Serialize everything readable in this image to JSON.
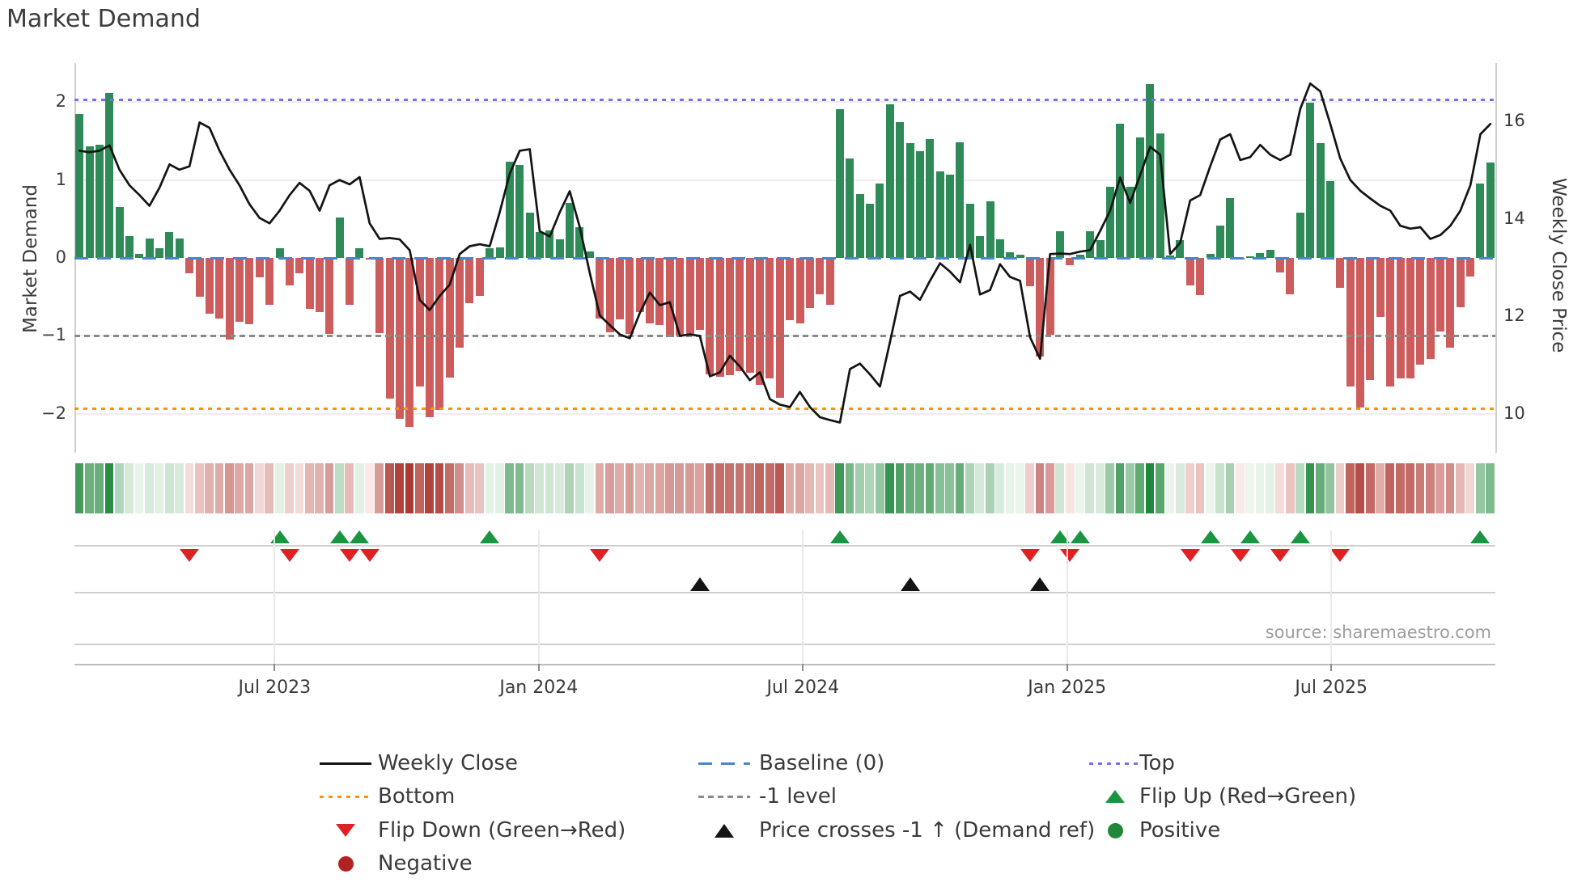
{
  "title": "Market Demand",
  "axes": {
    "left": {
      "label": "Market Demand",
      "ticks": [
        2,
        1,
        0,
        -1,
        -2
      ],
      "range": [
        -2.5,
        2.5
      ]
    },
    "right": {
      "label": "Weekly Close Price",
      "ticks": [
        16,
        14,
        12,
        10
      ],
      "range": [
        9.2,
        17.2
      ]
    },
    "x": {
      "ticks": [
        {
          "label": "Jul 2023",
          "idx": 19.5
        },
        {
          "label": "Jan 2024",
          "idx": 45.9
        },
        {
          "label": "Jul 2024",
          "idx": 72.3
        },
        {
          "label": "Jan 2025",
          "idx": 98.7
        },
        {
          "label": "Jul 2025",
          "idx": 125.1
        }
      ]
    }
  },
  "ref_lines": {
    "top": {
      "label": "Top",
      "value": 2.03,
      "color": "#7b6fe6",
      "style": "dotted"
    },
    "baseline": {
      "label": "Baseline (0)",
      "value": 0,
      "color": "#4a86c4",
      "style": "dashed"
    },
    "minus_one": {
      "label": "-1 level",
      "value": -1,
      "color": "#8a8a8a",
      "style": "dashed"
    },
    "bottom": {
      "label": "Bottom",
      "value": -1.93,
      "color": "#f5960f",
      "style": "dotted"
    }
  },
  "source": "source: sharemaestro.com",
  "legend": {
    "items": [
      {
        "label": "Weekly Close",
        "swatch": "line-black"
      },
      {
        "label": "Bottom",
        "swatch": "dotted-orange"
      },
      {
        "label": "Flip Down (Green→Red)",
        "swatch": "triangle-down-red"
      },
      {
        "label": "Negative",
        "swatch": "circle-darkred"
      },
      {
        "label": "Baseline (0)",
        "swatch": "dashed-blue"
      },
      {
        "label": "-1 level",
        "swatch": "dashed-gray"
      },
      {
        "label": "Price crosses -1 ↑ (Demand ref)",
        "swatch": "triangle-up-black"
      },
      {
        "label": "Top",
        "swatch": "dotted-purple"
      },
      {
        "label": "Flip Up (Red→Green)",
        "swatch": "triangle-up-green"
      },
      {
        "label": "Positive",
        "swatch": "circle-green"
      }
    ]
  },
  "colors": {
    "bar_positive": "#2e8b57",
    "bar_negative": "#cd5c5c",
    "price_line": "#141414",
    "flip_up_marker": "#1a9641",
    "flip_down_marker": "#e02124",
    "price_cross_marker": "#141414",
    "top_line": "#7b6fe6",
    "baseline": "#4a86c4",
    "minus_one_line": "#8a8a8a",
    "bottom_line": "#f5960f"
  },
  "chart_data": {
    "type": [
      "bar",
      "line",
      "heatmap"
    ],
    "n_weeks": 142,
    "title": "Market Demand",
    "ylabel_left": "Market Demand",
    "ylabel_right": "Weekly Close Price",
    "x_tick_labels": [
      "Jul 2023",
      "Jan 2024",
      "Jul 2024",
      "Jan 2025",
      "Jul 2025"
    ],
    "demand": [
      1.85,
      1.43,
      1.45,
      2.12,
      0.65,
      0.28,
      0.05,
      0.25,
      0.12,
      0.33,
      0.25,
      -0.2,
      -0.5,
      -0.72,
      -0.78,
      -1.05,
      -0.82,
      -0.85,
      -0.25,
      -0.6,
      0.12,
      -0.35,
      -0.2,
      -0.65,
      -0.7,
      -0.97,
      0.52,
      -0.6,
      0.12,
      -0.02,
      -0.96,
      -1.8,
      -2.06,
      -2.17,
      -1.65,
      -2.04,
      -1.95,
      -1.54,
      -1.15,
      -0.58,
      -0.49,
      0.12,
      0.13,
      1.23,
      1.19,
      0.58,
      0.33,
      0.35,
      0.24,
      0.71,
      0.39,
      0.08,
      -0.78,
      -0.95,
      -0.79,
      -0.97,
      -0.69,
      -0.84,
      -0.86,
      -1.02,
      -1.0,
      -1.0,
      -0.92,
      -1.49,
      -1.52,
      -1.5,
      -1.45,
      -1.47,
      -1.63,
      -1.55,
      -1.79,
      -0.8,
      -0.84,
      -0.64,
      -0.47,
      -0.6,
      1.91,
      1.28,
      0.82,
      0.7,
      0.95,
      1.97,
      1.74,
      1.47,
      1.37,
      1.52,
      1.11,
      1.07,
      1.48,
      0.7,
      0.28,
      0.73,
      0.24,
      0.07,
      0.04,
      -0.36,
      -1.27,
      -0.99,
      0.34,
      -0.09,
      0.04,
      0.34,
      0.23,
      0.91,
      1.72,
      0.91,
      1.55,
      2.23,
      1.6,
      0.03,
      0.23,
      -0.35,
      -0.48,
      0.05,
      0.42,
      0.77,
      -0.02,
      0.02,
      0.06,
      0.1,
      -0.19,
      -0.47,
      0.58,
      1.99,
      1.47,
      0.99,
      -0.38,
      -1.65,
      -1.92,
      -1.57,
      -0.76,
      -1.65,
      -1.55,
      -1.55,
      -1.37,
      -1.3,
      -0.94,
      -1.15,
      -0.63,
      -0.24,
      0.95,
      1.22
    ],
    "weekly_close": [
      15.4,
      15.37,
      15.4,
      15.51,
      15.01,
      14.69,
      14.49,
      14.27,
      14.64,
      15.12,
      15.01,
      15.08,
      15.98,
      15.87,
      15.4,
      15.01,
      14.69,
      14.3,
      14.02,
      13.91,
      14.17,
      14.49,
      14.74,
      14.58,
      14.17,
      14.69,
      14.8,
      14.71,
      14.86,
      13.91,
      13.59,
      13.61,
      13.58,
      13.36,
      12.34,
      12.13,
      12.42,
      12.65,
      13.28,
      13.44,
      13.48,
      13.44,
      14.14,
      14.93,
      15.4,
      15.43,
      13.75,
      13.64,
      14.14,
      14.57,
      13.83,
      12.89,
      12.02,
      11.82,
      11.63,
      11.55,
      12.07,
      12.49,
      12.23,
      12.29,
      11.6,
      11.63,
      11.6,
      10.77,
      10.85,
      11.19,
      10.97,
      10.69,
      10.85,
      10.3,
      10.19,
      10.14,
      10.45,
      10.14,
      9.93,
      9.87,
      9.82,
      10.92,
      11.03,
      10.81,
      10.56,
      11.47,
      12.42,
      12.51,
      12.34,
      12.73,
      13.09,
      12.92,
      12.7,
      13.47,
      12.45,
      12.54,
      13.07,
      12.81,
      12.73,
      11.57,
      11.13,
      13.28,
      13.29,
      13.28,
      13.33,
      13.36,
      13.75,
      14.17,
      14.85,
      14.33,
      14.9,
      15.48,
      15.32,
      13.28,
      13.51,
      14.38,
      14.49,
      15.08,
      15.63,
      15.74,
      15.21,
      15.27,
      15.52,
      15.32,
      15.21,
      15.32,
      16.26,
      16.78,
      16.62,
      15.95,
      15.24,
      14.8,
      14.58,
      14.42,
      14.27,
      14.17,
      13.86,
      13.8,
      13.83,
      13.59,
      13.67,
      13.86,
      14.17,
      14.69,
      15.74,
      15.95
    ],
    "flip_up_indices": [
      20,
      26,
      28,
      41,
      76,
      98,
      100,
      113,
      117,
      122,
      140
    ],
    "flip_down_indices": [
      11,
      21,
      27,
      29,
      52,
      95,
      99,
      111,
      116,
      120,
      126
    ],
    "price_cross_up_indices": [
      62,
      83,
      96
    ],
    "heatmap": "weekly demand values shaded light-to-dark green when positive, light-to-dark red when negative"
  }
}
